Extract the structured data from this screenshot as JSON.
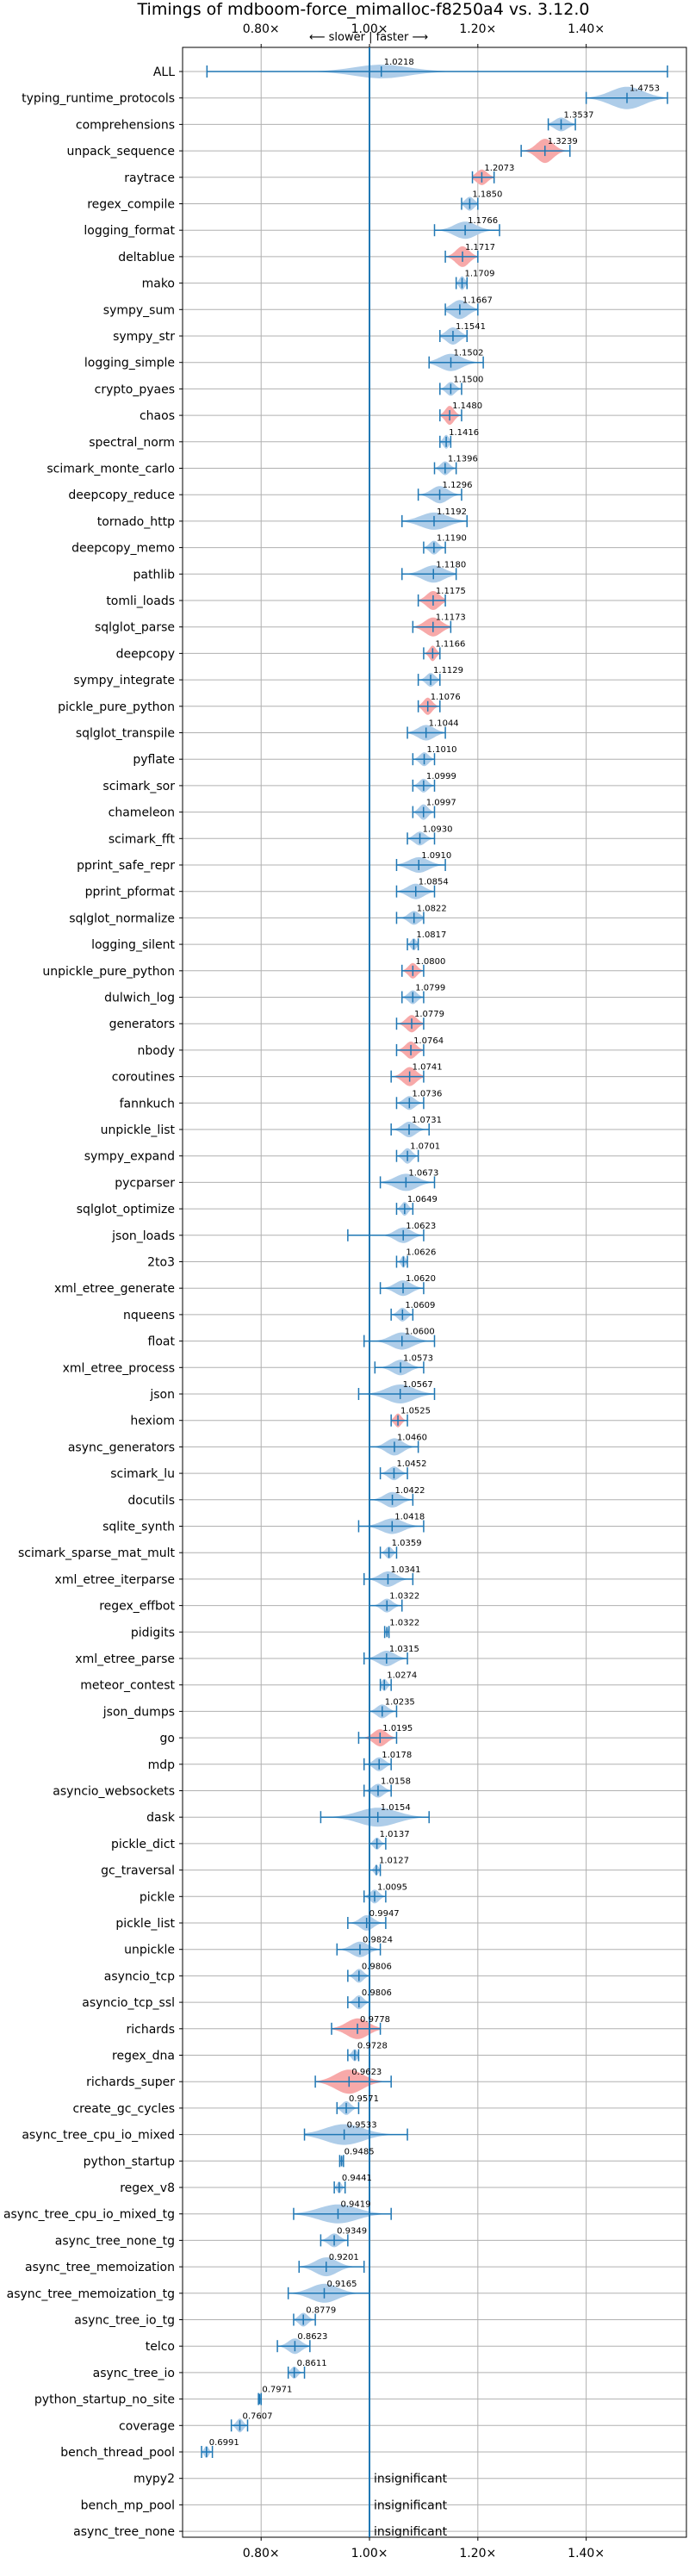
{
  "chart_data": {
    "type": "violin",
    "title": "Timings of mdboom-force_mimalloc-f8250a4 vs. 3.12.0",
    "direction_label": "⟵ slower | faster ⟶",
    "xlabel": "",
    "ylabel": "",
    "xlim": [
      0.655,
      1.585
    ],
    "x_ticks": [
      {
        "value": 0.8,
        "label": "0.80×"
      },
      {
        "value": 1.0,
        "label": "1.00×"
      },
      {
        "value": 1.2,
        "label": "1.20×"
      },
      {
        "value": 1.4,
        "label": "1.40×"
      }
    ],
    "grid": true,
    "colors": {
      "faster": "#aecde9",
      "slower": "#f7a9a9",
      "marker": "#1f77b4",
      "grid": "#b0b0b0"
    },
    "rows": [
      {
        "name": "ALL",
        "value": 1.0218,
        "min": 0.7,
        "max": 1.55,
        "spread": 0.05,
        "peak": 8,
        "color": "faster",
        "bars": false
      },
      {
        "name": "typing_runtime_protocols",
        "value": 1.4753,
        "min": 1.4,
        "max": 1.55,
        "spread": 0.03,
        "peak": 13,
        "color": "faster"
      },
      {
        "name": "comprehensions",
        "value": 1.3537,
        "min": 1.33,
        "max": 1.38,
        "spread": 0.012,
        "peak": 8,
        "color": "faster"
      },
      {
        "name": "unpack_sequence",
        "value": 1.3239,
        "min": 1.28,
        "max": 1.37,
        "spread": 0.015,
        "peak": 14,
        "color": "slower"
      },
      {
        "name": "raytrace",
        "value": 1.2073,
        "min": 1.19,
        "max": 1.23,
        "spread": 0.01,
        "peak": 9,
        "color": "slower"
      },
      {
        "name": "regex_compile",
        "value": 1.185,
        "min": 1.17,
        "max": 1.2,
        "spread": 0.008,
        "peak": 8,
        "color": "faster"
      },
      {
        "name": "logging_format",
        "value": 1.1766,
        "min": 1.12,
        "max": 1.24,
        "spread": 0.02,
        "peak": 10,
        "color": "faster"
      },
      {
        "name": "deltablue",
        "value": 1.1717,
        "min": 1.14,
        "max": 1.2,
        "spread": 0.012,
        "peak": 12,
        "color": "slower"
      },
      {
        "name": "mako",
        "value": 1.1709,
        "min": 1.16,
        "max": 1.18,
        "spread": 0.005,
        "peak": 8,
        "color": "faster"
      },
      {
        "name": "sympy_sum",
        "value": 1.1667,
        "min": 1.14,
        "max": 1.2,
        "spread": 0.015,
        "peak": 11,
        "color": "faster"
      },
      {
        "name": "sympy_str",
        "value": 1.1541,
        "min": 1.13,
        "max": 1.18,
        "spread": 0.012,
        "peak": 10,
        "color": "faster"
      },
      {
        "name": "logging_simple",
        "value": 1.1502,
        "min": 1.11,
        "max": 1.21,
        "spread": 0.02,
        "peak": 10,
        "color": "faster"
      },
      {
        "name": "crypto_pyaes",
        "value": 1.15,
        "min": 1.13,
        "max": 1.17,
        "spread": 0.008,
        "peak": 8,
        "color": "faster"
      },
      {
        "name": "chaos",
        "value": 1.148,
        "min": 1.13,
        "max": 1.17,
        "spread": 0.008,
        "peak": 11,
        "color": "slower"
      },
      {
        "name": "spectral_norm",
        "value": 1.1416,
        "min": 1.13,
        "max": 1.15,
        "spread": 0.005,
        "peak": 8,
        "color": "faster"
      },
      {
        "name": "scimark_monte_carlo",
        "value": 1.1396,
        "min": 1.12,
        "max": 1.16,
        "spread": 0.008,
        "peak": 8,
        "color": "faster"
      },
      {
        "name": "deepcopy_reduce",
        "value": 1.1296,
        "min": 1.09,
        "max": 1.17,
        "spread": 0.015,
        "peak": 10,
        "color": "faster"
      },
      {
        "name": "tornado_http",
        "value": 1.1192,
        "min": 1.06,
        "max": 1.18,
        "spread": 0.025,
        "peak": 10,
        "color": "faster"
      },
      {
        "name": "deepcopy_memo",
        "value": 1.119,
        "min": 1.1,
        "max": 1.14,
        "spread": 0.008,
        "peak": 8,
        "color": "faster"
      },
      {
        "name": "pathlib",
        "value": 1.118,
        "min": 1.06,
        "max": 1.16,
        "spread": 0.02,
        "peak": 10,
        "color": "faster"
      },
      {
        "name": "tomli_loads",
        "value": 1.1175,
        "min": 1.09,
        "max": 1.14,
        "spread": 0.012,
        "peak": 11,
        "color": "slower"
      },
      {
        "name": "sqlglot_parse",
        "value": 1.1173,
        "min": 1.08,
        "max": 1.15,
        "spread": 0.015,
        "peak": 11,
        "color": "slower"
      },
      {
        "name": "deepcopy",
        "value": 1.1166,
        "min": 1.1,
        "max": 1.13,
        "spread": 0.006,
        "peak": 9,
        "color": "slower"
      },
      {
        "name": "sympy_integrate",
        "value": 1.1129,
        "min": 1.09,
        "max": 1.13,
        "spread": 0.008,
        "peak": 8,
        "color": "faster"
      },
      {
        "name": "pickle_pure_python",
        "value": 1.1076,
        "min": 1.09,
        "max": 1.13,
        "spread": 0.008,
        "peak": 10,
        "color": "slower"
      },
      {
        "name": "sqlglot_transpile",
        "value": 1.1044,
        "min": 1.07,
        "max": 1.14,
        "spread": 0.015,
        "peak": 9,
        "color": "faster"
      },
      {
        "name": "pyflate",
        "value": 1.101,
        "min": 1.08,
        "max": 1.12,
        "spread": 0.008,
        "peak": 8,
        "color": "faster"
      },
      {
        "name": "scimark_sor",
        "value": 1.0999,
        "min": 1.08,
        "max": 1.12,
        "spread": 0.008,
        "peak": 8,
        "color": "faster"
      },
      {
        "name": "chameleon",
        "value": 1.0997,
        "min": 1.08,
        "max": 1.12,
        "spread": 0.008,
        "peak": 9,
        "color": "faster"
      },
      {
        "name": "scimark_fft",
        "value": 1.093,
        "min": 1.07,
        "max": 1.12,
        "spread": 0.01,
        "peak": 8,
        "color": "faster"
      },
      {
        "name": "pprint_safe_repr",
        "value": 1.091,
        "min": 1.05,
        "max": 1.14,
        "spread": 0.018,
        "peak": 9,
        "color": "faster"
      },
      {
        "name": "pprint_pformat",
        "value": 1.0854,
        "min": 1.05,
        "max": 1.12,
        "spread": 0.015,
        "peak": 9,
        "color": "faster"
      },
      {
        "name": "sqlglot_normalize",
        "value": 1.0822,
        "min": 1.05,
        "max": 1.1,
        "spread": 0.01,
        "peak": 8,
        "color": "faster"
      },
      {
        "name": "logging_silent",
        "value": 1.0817,
        "min": 1.07,
        "max": 1.09,
        "spread": 0.005,
        "peak": 7,
        "color": "faster"
      },
      {
        "name": "unpickle_pure_python",
        "value": 1.08,
        "min": 1.06,
        "max": 1.1,
        "spread": 0.008,
        "peak": 9,
        "color": "slower"
      },
      {
        "name": "dulwich_log",
        "value": 1.0799,
        "min": 1.06,
        "max": 1.1,
        "spread": 0.008,
        "peak": 8,
        "color": "faster"
      },
      {
        "name": "generators",
        "value": 1.0779,
        "min": 1.05,
        "max": 1.1,
        "spread": 0.01,
        "peak": 10,
        "color": "slower"
      },
      {
        "name": "nbody",
        "value": 1.0764,
        "min": 1.05,
        "max": 1.1,
        "spread": 0.01,
        "peak": 10,
        "color": "slower"
      },
      {
        "name": "coroutines",
        "value": 1.0741,
        "min": 1.04,
        "max": 1.1,
        "spread": 0.012,
        "peak": 11,
        "color": "slower"
      },
      {
        "name": "fannkuch",
        "value": 1.0736,
        "min": 1.05,
        "max": 1.1,
        "spread": 0.01,
        "peak": 8,
        "color": "faster"
      },
      {
        "name": "unpickle_list",
        "value": 1.0731,
        "min": 1.04,
        "max": 1.11,
        "spread": 0.012,
        "peak": 9,
        "color": "faster"
      },
      {
        "name": "sympy_expand",
        "value": 1.0701,
        "min": 1.05,
        "max": 1.09,
        "spread": 0.008,
        "peak": 9,
        "color": "faster"
      },
      {
        "name": "pycparser",
        "value": 1.0673,
        "min": 1.02,
        "max": 1.12,
        "spread": 0.02,
        "peak": 10,
        "color": "faster"
      },
      {
        "name": "sqlglot_optimize",
        "value": 1.0649,
        "min": 1.05,
        "max": 1.08,
        "spread": 0.006,
        "peak": 8,
        "color": "faster"
      },
      {
        "name": "json_loads",
        "value": 1.0623,
        "min": 0.96,
        "max": 1.1,
        "spread": 0.015,
        "peak": 9,
        "color": "faster"
      },
      {
        "name": "2to3",
        "value": 1.0626,
        "min": 1.05,
        "max": 1.07,
        "spread": 0.004,
        "peak": 7,
        "color": "faster"
      },
      {
        "name": "xml_etree_generate",
        "value": 1.062,
        "min": 1.02,
        "max": 1.1,
        "spread": 0.015,
        "peak": 9,
        "color": "faster"
      },
      {
        "name": "nqueens",
        "value": 1.0609,
        "min": 1.04,
        "max": 1.08,
        "spread": 0.008,
        "peak": 8,
        "color": "faster"
      },
      {
        "name": "float",
        "value": 1.06,
        "min": 0.99,
        "max": 1.12,
        "spread": 0.02,
        "peak": 10,
        "color": "faster"
      },
      {
        "name": "xml_etree_process",
        "value": 1.0573,
        "min": 1.01,
        "max": 1.1,
        "spread": 0.015,
        "peak": 9,
        "color": "faster"
      },
      {
        "name": "json",
        "value": 1.0567,
        "min": 0.98,
        "max": 1.12,
        "spread": 0.025,
        "peak": 11,
        "color": "faster"
      },
      {
        "name": "hexiom",
        "value": 1.0525,
        "min": 1.04,
        "max": 1.07,
        "spread": 0.006,
        "peak": 8,
        "color": "slower"
      },
      {
        "name": "async_generators",
        "value": 1.046,
        "min": 1.0,
        "max": 1.09,
        "spread": 0.015,
        "peak": 10,
        "color": "faster"
      },
      {
        "name": "scimark_lu",
        "value": 1.0452,
        "min": 1.02,
        "max": 1.07,
        "spread": 0.01,
        "peak": 8,
        "color": "faster"
      },
      {
        "name": "docutils",
        "value": 1.0422,
        "min": 1.0,
        "max": 1.08,
        "spread": 0.015,
        "peak": 9,
        "color": "faster"
      },
      {
        "name": "sqlite_synth",
        "value": 1.0418,
        "min": 0.98,
        "max": 1.1,
        "spread": 0.02,
        "peak": 9,
        "color": "faster"
      },
      {
        "name": "scimark_sparse_mat_mult",
        "value": 1.0359,
        "min": 1.02,
        "max": 1.05,
        "spread": 0.006,
        "peak": 7,
        "color": "faster"
      },
      {
        "name": "xml_etree_iterparse",
        "value": 1.0341,
        "min": 0.99,
        "max": 1.08,
        "spread": 0.015,
        "peak": 9,
        "color": "faster"
      },
      {
        "name": "regex_effbot",
        "value": 1.0322,
        "min": 1.0,
        "max": 1.06,
        "spread": 0.01,
        "peak": 8,
        "color": "faster"
      },
      {
        "name": "pidigits",
        "value": 1.0322,
        "min": 1.028,
        "max": 1.036,
        "spread": 0.002,
        "peak": 6,
        "color": "faster"
      },
      {
        "name": "xml_etree_parse",
        "value": 1.0315,
        "min": 0.99,
        "max": 1.07,
        "spread": 0.015,
        "peak": 9,
        "color": "faster"
      },
      {
        "name": "meteor_contest",
        "value": 1.0274,
        "min": 1.02,
        "max": 1.04,
        "spread": 0.005,
        "peak": 7,
        "color": "faster"
      },
      {
        "name": "json_dumps",
        "value": 1.0235,
        "min": 1.0,
        "max": 1.05,
        "spread": 0.01,
        "peak": 8,
        "color": "faster"
      },
      {
        "name": "go",
        "value": 1.0195,
        "min": 0.98,
        "max": 1.05,
        "spread": 0.012,
        "peak": 10,
        "color": "slower"
      },
      {
        "name": "mdp",
        "value": 1.0178,
        "min": 0.99,
        "max": 1.04,
        "spread": 0.01,
        "peak": 8,
        "color": "faster"
      },
      {
        "name": "asyncio_websockets",
        "value": 1.0158,
        "min": 0.99,
        "max": 1.04,
        "spread": 0.01,
        "peak": 8,
        "color": "faster"
      },
      {
        "name": "dask",
        "value": 1.0154,
        "min": 0.91,
        "max": 1.11,
        "spread": 0.035,
        "peak": 11,
        "color": "faster"
      },
      {
        "name": "pickle_dict",
        "value": 1.0137,
        "min": 1.0,
        "max": 1.03,
        "spread": 0.006,
        "peak": 7,
        "color": "faster"
      },
      {
        "name": "gc_traversal",
        "value": 1.0127,
        "min": 1.0,
        "max": 1.02,
        "spread": 0.004,
        "peak": 6,
        "color": "faster"
      },
      {
        "name": "pickle",
        "value": 1.0095,
        "min": 0.99,
        "max": 1.03,
        "spread": 0.008,
        "peak": 8,
        "color": "faster"
      },
      {
        "name": "pickle_list",
        "value": 0.9947,
        "min": 0.96,
        "max": 1.03,
        "spread": 0.012,
        "peak": 9,
        "color": "faster"
      },
      {
        "name": "unpickle",
        "value": 0.9824,
        "min": 0.94,
        "max": 1.02,
        "spread": 0.015,
        "peak": 9,
        "color": "faster"
      },
      {
        "name": "asyncio_tcp",
        "value": 0.9806,
        "min": 0.96,
        "max": 1.0,
        "spread": 0.008,
        "peak": 8,
        "color": "faster"
      },
      {
        "name": "asyncio_tcp_ssl",
        "value": 0.9806,
        "min": 0.96,
        "max": 1.0,
        "spread": 0.008,
        "peak": 8,
        "color": "faster"
      },
      {
        "name": "richards",
        "value": 0.9778,
        "min": 0.93,
        "max": 1.02,
        "spread": 0.02,
        "peak": 12,
        "color": "slower"
      },
      {
        "name": "regex_dna",
        "value": 0.9728,
        "min": 0.96,
        "max": 0.98,
        "spread": 0.005,
        "peak": 7,
        "color": "faster"
      },
      {
        "name": "richards_super",
        "value": 0.9623,
        "min": 0.9,
        "max": 1.04,
        "spread": 0.025,
        "peak": 14,
        "color": "slower"
      },
      {
        "name": "create_gc_cycles",
        "value": 0.9571,
        "min": 0.94,
        "max": 0.98,
        "spread": 0.008,
        "peak": 8,
        "color": "faster"
      },
      {
        "name": "async_tree_cpu_io_mixed",
        "value": 0.9533,
        "min": 0.88,
        "max": 1.07,
        "spread": 0.035,
        "peak": 12,
        "color": "faster"
      },
      {
        "name": "python_startup",
        "value": 0.9485,
        "min": 0.945,
        "max": 0.952,
        "spread": 0.002,
        "peak": 7,
        "color": "faster"
      },
      {
        "name": "regex_v8",
        "value": 0.9441,
        "min": 0.935,
        "max": 0.955,
        "spread": 0.004,
        "peak": 7,
        "color": "faster"
      },
      {
        "name": "async_tree_cpu_io_mixed_tg",
        "value": 0.9419,
        "min": 0.86,
        "max": 1.04,
        "spread": 0.035,
        "peak": 11,
        "color": "faster"
      },
      {
        "name": "async_tree_none_tg",
        "value": 0.9349,
        "min": 0.91,
        "max": 0.96,
        "spread": 0.01,
        "peak": 8,
        "color": "faster"
      },
      {
        "name": "async_tree_memoization",
        "value": 0.9201,
        "min": 0.87,
        "max": 0.99,
        "spread": 0.02,
        "peak": 11,
        "color": "faster"
      },
      {
        "name": "async_tree_memoization_tg",
        "value": 0.9165,
        "min": 0.85,
        "max": 1.0,
        "spread": 0.025,
        "peak": 11,
        "color": "faster"
      },
      {
        "name": "async_tree_io_tg",
        "value": 0.8779,
        "min": 0.86,
        "max": 0.9,
        "spread": 0.008,
        "peak": 8,
        "color": "faster"
      },
      {
        "name": "telco",
        "value": 0.8623,
        "min": 0.83,
        "max": 0.89,
        "spread": 0.012,
        "peak": 9,
        "color": "faster"
      },
      {
        "name": "async_tree_io",
        "value": 0.8611,
        "min": 0.85,
        "max": 0.88,
        "spread": 0.006,
        "peak": 7,
        "color": "faster"
      },
      {
        "name": "python_startup_no_site",
        "value": 0.7971,
        "min": 0.795,
        "max": 0.8,
        "spread": 0.002,
        "peak": 6,
        "color": "faster"
      },
      {
        "name": "coverage",
        "value": 0.7607,
        "min": 0.745,
        "max": 0.775,
        "spread": 0.006,
        "peak": 8,
        "color": "faster"
      },
      {
        "name": "bench_thread_pool",
        "value": 0.6991,
        "min": 0.69,
        "max": 0.71,
        "spread": 0.004,
        "peak": 7,
        "color": "faster"
      },
      {
        "name": "mypy2",
        "value": null,
        "note": "insignificant"
      },
      {
        "name": "bench_mp_pool",
        "value": null,
        "note": "insignificant"
      },
      {
        "name": "async_tree_none",
        "value": null,
        "note": "insignificant"
      }
    ]
  }
}
